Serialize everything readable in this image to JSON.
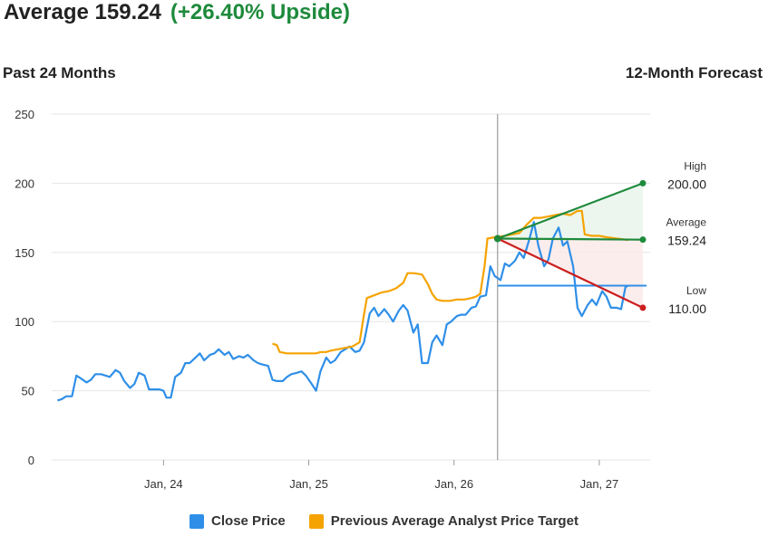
{
  "header": {
    "average_label": "Average 159.24",
    "upside_label": "(+26.40% Upside)"
  },
  "subheader": {
    "left": "Past 24 Months",
    "right": "12-Month Forecast"
  },
  "colors": {
    "close": "#2f8fe8",
    "target": "#f5a300",
    "high": "#1e8a3c",
    "low": "#cc1f1f",
    "grid": "#e6e6e6"
  },
  "legend": [
    {
      "label": "Close Price",
      "color": "#2f8fe8"
    },
    {
      "label": "Previous Average Analyst Price Target",
      "color": "#f5a300"
    }
  ],
  "chart_data": {
    "type": "line",
    "ylim": [
      0,
      250
    ],
    "y_ticks": [
      0,
      50,
      100,
      150,
      200,
      250
    ],
    "x_tick_labels": [
      {
        "label": "Jan, 24",
        "t": 2024.0
      },
      {
        "label": "Jan, 25",
        "t": 2025.0
      },
      {
        "label": "Jan, 26",
        "t": 2026.0
      },
      {
        "label": "Jan, 27",
        "t": 2027.0
      }
    ],
    "x_range": [
      2023.23,
      2027.35
    ],
    "forecast_start": 2026.3,
    "forecast_end": 2027.3,
    "current_price": 126,
    "forecast": {
      "start_value": 160,
      "high": {
        "label": "High",
        "value": "200.00",
        "num": 200
      },
      "average": {
        "label": "Average",
        "value": "159.24",
        "num": 159.24
      },
      "low": {
        "label": "Low",
        "value": "110.00",
        "num": 110
      }
    },
    "series": [
      {
        "name": "Close Price",
        "points": [
          [
            2023.27,
            43
          ],
          [
            2023.3,
            44
          ],
          [
            2023.33,
            46
          ],
          [
            2023.37,
            46
          ],
          [
            2023.4,
            61
          ],
          [
            2023.43,
            59
          ],
          [
            2023.47,
            56
          ],
          [
            2023.5,
            58
          ],
          [
            2023.53,
            62
          ],
          [
            2023.57,
            62
          ],
          [
            2023.6,
            61
          ],
          [
            2023.63,
            60
          ],
          [
            2023.67,
            65
          ],
          [
            2023.7,
            63
          ],
          [
            2023.73,
            57
          ],
          [
            2023.77,
            52
          ],
          [
            2023.8,
            55
          ],
          [
            2023.83,
            63
          ],
          [
            2023.87,
            61
          ],
          [
            2023.9,
            51
          ],
          [
            2023.93,
            51
          ],
          [
            2023.97,
            51
          ],
          [
            2024.0,
            50
          ],
          [
            2024.02,
            45
          ],
          [
            2024.05,
            45
          ],
          [
            2024.08,
            60
          ],
          [
            2024.12,
            63
          ],
          [
            2024.15,
            70
          ],
          [
            2024.18,
            70
          ],
          [
            2024.22,
            74
          ],
          [
            2024.25,
            77
          ],
          [
            2024.28,
            72
          ],
          [
            2024.32,
            76
          ],
          [
            2024.35,
            77
          ],
          [
            2024.38,
            80
          ],
          [
            2024.42,
            76
          ],
          [
            2024.45,
            78
          ],
          [
            2024.48,
            73
          ],
          [
            2024.52,
            75
          ],
          [
            2024.55,
            74
          ],
          [
            2024.58,
            76
          ],
          [
            2024.62,
            72
          ],
          [
            2024.65,
            70
          ],
          [
            2024.68,
            69
          ],
          [
            2024.72,
            68
          ],
          [
            2024.75,
            58
          ],
          [
            2024.78,
            57
          ],
          [
            2024.82,
            57
          ],
          [
            2024.85,
            60
          ],
          [
            2024.88,
            62
          ],
          [
            2024.92,
            63
          ],
          [
            2024.95,
            64
          ],
          [
            2024.98,
            61
          ],
          [
            2025.02,
            55
          ],
          [
            2025.05,
            50
          ],
          [
            2025.08,
            64
          ],
          [
            2025.12,
            74
          ],
          [
            2025.15,
            70
          ],
          [
            2025.18,
            72
          ],
          [
            2025.22,
            78
          ],
          [
            2025.25,
            80
          ],
          [
            2025.28,
            82
          ],
          [
            2025.32,
            78
          ],
          [
            2025.35,
            79
          ],
          [
            2025.38,
            85
          ],
          [
            2025.42,
            106
          ],
          [
            2025.45,
            110
          ],
          [
            2025.48,
            104
          ],
          [
            2025.52,
            109
          ],
          [
            2025.55,
            105
          ],
          [
            2025.58,
            100
          ],
          [
            2025.62,
            108
          ],
          [
            2025.65,
            112
          ],
          [
            2025.68,
            108
          ],
          [
            2025.72,
            92
          ],
          [
            2025.75,
            98
          ],
          [
            2025.78,
            70
          ],
          [
            2025.82,
            70
          ],
          [
            2025.85,
            85
          ],
          [
            2025.88,
            90
          ],
          [
            2025.92,
            83
          ],
          [
            2025.95,
            98
          ],
          [
            2025.98,
            100
          ],
          [
            2026.02,
            104
          ],
          [
            2026.05,
            105
          ],
          [
            2026.08,
            105
          ],
          [
            2026.12,
            110
          ],
          [
            2026.15,
            111
          ],
          [
            2026.18,
            118
          ],
          [
            2026.22,
            119
          ],
          [
            2026.25,
            140
          ],
          [
            2026.28,
            133
          ],
          [
            2026.32,
            130
          ],
          [
            2026.35,
            142
          ],
          [
            2026.38,
            140
          ],
          [
            2026.42,
            144
          ],
          [
            2026.45,
            150
          ],
          [
            2026.48,
            146
          ],
          [
            2026.52,
            160
          ],
          [
            2026.55,
            172
          ],
          [
            2026.58,
            155
          ],
          [
            2026.62,
            140
          ],
          [
            2026.65,
            145
          ],
          [
            2026.68,
            160
          ],
          [
            2026.72,
            168
          ],
          [
            2026.75,
            155
          ],
          [
            2026.78,
            158
          ],
          [
            2026.82,
            140
          ],
          [
            2026.85,
            110
          ],
          [
            2026.88,
            104
          ],
          [
            2026.92,
            112
          ],
          [
            2026.95,
            116
          ],
          [
            2026.98,
            112
          ],
          [
            2027.02,
            122
          ],
          [
            2027.05,
            118
          ],
          [
            2027.08,
            110
          ],
          [
            2027.12,
            110
          ],
          [
            2027.15,
            109
          ],
          [
            2027.18,
            125
          ],
          [
            2027.2,
            126
          ]
        ]
      },
      {
        "name": "Previous Average Analyst Price Target",
        "points": [
          [
            2024.75,
            84
          ],
          [
            2024.78,
            83
          ],
          [
            2024.8,
            78
          ],
          [
            2024.85,
            77
          ],
          [
            2024.9,
            77
          ],
          [
            2024.95,
            77
          ],
          [
            2025.0,
            77
          ],
          [
            2025.05,
            77
          ],
          [
            2025.08,
            78
          ],
          [
            2025.12,
            78
          ],
          [
            2025.15,
            79
          ],
          [
            2025.2,
            80
          ],
          [
            2025.25,
            81
          ],
          [
            2025.3,
            82
          ],
          [
            2025.35,
            85
          ],
          [
            2025.38,
            105
          ],
          [
            2025.4,
            117
          ],
          [
            2025.45,
            119
          ],
          [
            2025.5,
            121
          ],
          [
            2025.55,
            122
          ],
          [
            2025.6,
            124
          ],
          [
            2025.65,
            128
          ],
          [
            2025.68,
            135
          ],
          [
            2025.72,
            135
          ],
          [
            2025.78,
            134
          ],
          [
            2025.82,
            127
          ],
          [
            2025.85,
            120
          ],
          [
            2025.88,
            116
          ],
          [
            2025.92,
            115
          ],
          [
            2025.97,
            115
          ],
          [
            2026.02,
            116
          ],
          [
            2026.07,
            116
          ],
          [
            2026.12,
            117
          ],
          [
            2026.15,
            118
          ],
          [
            2026.18,
            120
          ],
          [
            2026.21,
            140
          ],
          [
            2026.23,
            160
          ],
          [
            2026.28,
            161
          ],
          [
            2026.35,
            162
          ],
          [
            2026.4,
            163
          ],
          [
            2026.45,
            164
          ],
          [
            2026.5,
            170
          ],
          [
            2026.55,
            175
          ],
          [
            2026.6,
            175
          ],
          [
            2026.65,
            176
          ],
          [
            2026.7,
            177
          ],
          [
            2026.75,
            178
          ],
          [
            2026.8,
            177
          ],
          [
            2026.85,
            180
          ],
          [
            2026.88,
            180
          ],
          [
            2026.9,
            163
          ],
          [
            2026.95,
            162
          ],
          [
            2027.0,
            162
          ],
          [
            2027.05,
            161
          ],
          [
            2027.12,
            160
          ],
          [
            2027.2,
            159
          ]
        ]
      }
    ]
  }
}
